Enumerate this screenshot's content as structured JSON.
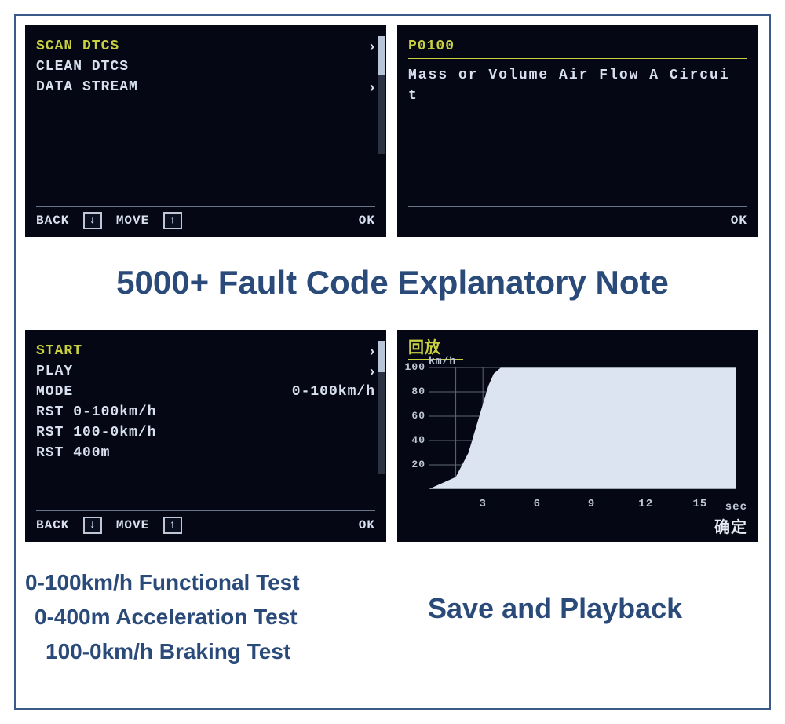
{
  "colors": {
    "frame_border": "#3a5a8a",
    "screen_bg": "#050814",
    "text_white": "#d8e0ef",
    "highlight_yellow": "#c8d040",
    "caption_blue": "#2a4a7a",
    "chart_fill": "#dce4f2",
    "grid_color": "#606878"
  },
  "screen1": {
    "items": [
      {
        "label": "SCAN DTCS",
        "arrow": true,
        "selected": true
      },
      {
        "label": "CLEAN DTCS",
        "arrow": false,
        "selected": false
      },
      {
        "label": "DATA STREAM",
        "arrow": true,
        "selected": false
      }
    ],
    "footer": {
      "back": "BACK",
      "move": "MOVE",
      "ok": "OK",
      "down_glyph": "↓",
      "up_glyph": "↑"
    }
  },
  "screen2": {
    "code": "P0100",
    "description_line1": "Mass or Volume Air Flow A Circui",
    "description_line2": "t",
    "footer_ok": "OK"
  },
  "screen3": {
    "items": [
      {
        "label": "START",
        "value": "",
        "arrow": true,
        "selected": true
      },
      {
        "label": "PLAY",
        "value": "",
        "arrow": true,
        "selected": false
      },
      {
        "label": "MODE",
        "value": "0-100km/h",
        "arrow": false,
        "selected": false
      },
      {
        "label": "RST 0-100km/h",
        "value": "",
        "arrow": false,
        "selected": false
      },
      {
        "label": "RST 100-0km/h",
        "value": "",
        "arrow": false,
        "selected": false
      },
      {
        "label": "RST 400m",
        "value": "",
        "arrow": false,
        "selected": false
      }
    ],
    "footer": {
      "back": "BACK",
      "move": "MOVE",
      "ok": "OK",
      "down_glyph": "↓",
      "up_glyph": "↑"
    }
  },
  "screen4": {
    "title": "回放",
    "y_unit": "km/h",
    "x_unit": "sec",
    "confirm": "确定",
    "chart": {
      "type": "area",
      "xlim": [
        0,
        17
      ],
      "ylim": [
        0,
        100
      ],
      "x_ticks": [
        3,
        6,
        9,
        12,
        15
      ],
      "y_ticks": [
        20,
        40,
        60,
        80,
        100
      ],
      "x_grid_step": 1.5,
      "y_grid_step": 20,
      "fill_color": "#dce4f2",
      "bg_color": "#0a1020",
      "grid_color": "#606878",
      "points": [
        {
          "x": 0,
          "y": 0
        },
        {
          "x": 1.5,
          "y": 10
        },
        {
          "x": 2.2,
          "y": 30
        },
        {
          "x": 2.6,
          "y": 50
        },
        {
          "x": 2.8,
          "y": 60
        },
        {
          "x": 3.0,
          "y": 70
        },
        {
          "x": 3.3,
          "y": 85
        },
        {
          "x": 3.6,
          "y": 95
        },
        {
          "x": 4.0,
          "y": 100
        },
        {
          "x": 17,
          "y": 100
        }
      ]
    }
  },
  "captions": {
    "main": "5000+ Fault Code Explanatory Note",
    "tests_line1": "0-100km/h Functional Test",
    "tests_line2": "0-400m Acceleration Test",
    "tests_line3": "100-0km/h Braking Test",
    "playback": "Save and Playback"
  }
}
